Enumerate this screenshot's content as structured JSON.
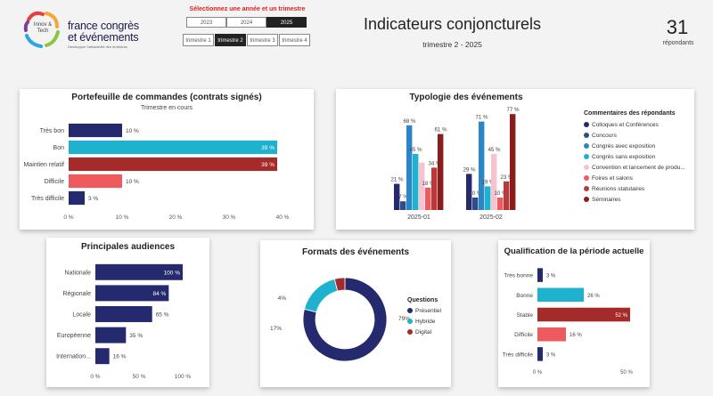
{
  "header": {
    "logo_text_small": "Innov & Tech",
    "brand_line1": "france congrès",
    "brand_line2": "et événements",
    "brand_tagline": "Développer l'attractivité des territoires",
    "selector_label": "Sélectionnez une année et un trimestre",
    "years": [
      {
        "label": "2023",
        "selected": false
      },
      {
        "label": "2024",
        "selected": false
      },
      {
        "label": "2025",
        "selected": true
      }
    ],
    "quarters": [
      {
        "label": "trimestre 1",
        "selected": false
      },
      {
        "label": "trimestre 2",
        "selected": true
      },
      {
        "label": "trimestre 3",
        "selected": false
      },
      {
        "label": "trimestre 4",
        "selected": false
      }
    ],
    "title": "Indicateurs conjoncturels",
    "subtitle": "trimestre 2 - 2025",
    "respondents_count": "31",
    "respondents_label": "répondants"
  },
  "colors": {
    "navy": "#252a6e",
    "teal": "#1fb2cf",
    "darkred": "#a52a2a",
    "coral": "#ef5a5f",
    "selector_red": "#e02020"
  },
  "chart_data": [
    {
      "id": "portefeuille",
      "type": "bar",
      "orientation": "horizontal",
      "title": "Portefeuille de commandes (contrats signés)",
      "subtitle": "Trimestre en cours",
      "categories": [
        "Très bon",
        "Bon",
        "Maintien relatif",
        "Difficile",
        "Très difficile"
      ],
      "values": [
        10,
        39,
        39,
        10,
        3
      ],
      "data_labels": [
        "10 %",
        "39 %",
        "39 %",
        "10 %",
        "3 %"
      ],
      "colors": [
        "#252a6e",
        "#1fb2cf",
        "#a52a2a",
        "#ef5a5f",
        "#252a6e"
      ],
      "xlim": [
        0,
        40
      ],
      "xticks": [
        "0 %",
        "10 %",
        "20 %",
        "30 %",
        "40 %"
      ]
    },
    {
      "id": "typologie",
      "type": "bar",
      "title": "Typologie des événements",
      "categories": [
        "2025-01",
        "2025-02"
      ],
      "ylim": [
        0,
        80
      ],
      "legend_title": "Commentaires des répondants",
      "series": [
        {
          "name": "Colloques et Conférences",
          "color": "#252a6e",
          "values": [
            21,
            29
          ],
          "labels": [
            "21 %",
            "29 %"
          ]
        },
        {
          "name": "Concours",
          "color": "#2e4d8a",
          "values": [
            7,
            10
          ],
          "labels": [
            "7 %",
            "10 %"
          ]
        },
        {
          "name": "Congrès avec exposition",
          "color": "#2a86c6",
          "values": [
            68,
            71
          ],
          "labels": [
            "68 %",
            "71 %"
          ]
        },
        {
          "name": "Congrès sans exposition",
          "color": "#1fb2cf",
          "values": [
            45,
            19
          ],
          "labels": [
            "45 %",
            "19 %"
          ]
        },
        {
          "name": "Convention et lancement de produ...",
          "color": "#f7c3cf",
          "values": [
            38,
            45
          ],
          "labels": [
            "",
            "45 %"
          ]
        },
        {
          "name": "Foires et salons",
          "color": "#ef5a5f",
          "values": [
            18,
            10
          ],
          "labels": [
            "18 %",
            "10 %"
          ]
        },
        {
          "name": "Réunions statutaires",
          "color": "#b83a3a",
          "values": [
            34,
            23
          ],
          "labels": [
            "34 %",
            "23 %"
          ]
        },
        {
          "name": "Séminaires",
          "color": "#8b1c1c",
          "values": [
            61,
            77
          ],
          "labels": [
            "61 %",
            "77 %"
          ]
        }
      ]
    },
    {
      "id": "audiences",
      "type": "bar",
      "orientation": "horizontal",
      "title": "Principales audiences",
      "categories": [
        "Nationale",
        "Régionale",
        "Locale",
        "Européenne",
        "Internation..."
      ],
      "values": [
        100,
        84,
        65,
        35,
        16
      ],
      "data_labels": [
        "100 %",
        "84 %",
        "65 %",
        "35 %",
        "16 %"
      ],
      "colors": [
        "#252a6e",
        "#252a6e",
        "#252a6e",
        "#252a6e",
        "#252a6e"
      ],
      "xlim": [
        0,
        100
      ],
      "xticks": [
        "0 %",
        "50 %",
        "100 %"
      ]
    },
    {
      "id": "formats",
      "type": "pie",
      "donut": true,
      "title": "Formats des événements",
      "legend_title": "Questions",
      "categories": [
        "Présentiel",
        "Hybride",
        "Digital"
      ],
      "values": [
        79,
        17,
        4
      ],
      "data_labels": [
        "79%",
        "17%",
        "4%"
      ],
      "colors": [
        "#252a6e",
        "#1fb2cf",
        "#a52a2a"
      ]
    },
    {
      "id": "qualification",
      "type": "bar",
      "orientation": "horizontal",
      "title": "Qualification de la période actuelle",
      "categories": [
        "Très bonne",
        "Bonne",
        "Stable",
        "Difficile",
        "Très difficile"
      ],
      "values": [
        3,
        26,
        52,
        16,
        3
      ],
      "data_labels": [
        "3 %",
        "26 %",
        "52 %",
        "16 %",
        "3 %"
      ],
      "colors": [
        "#252a6e",
        "#1fb2cf",
        "#a52a2a",
        "#ef5a5f",
        "#252a6e"
      ],
      "xlim": [
        0,
        55
      ],
      "xticks": [
        "0 %",
        "50 %"
      ],
      "xtick_values": [
        0,
        50
      ]
    }
  ]
}
